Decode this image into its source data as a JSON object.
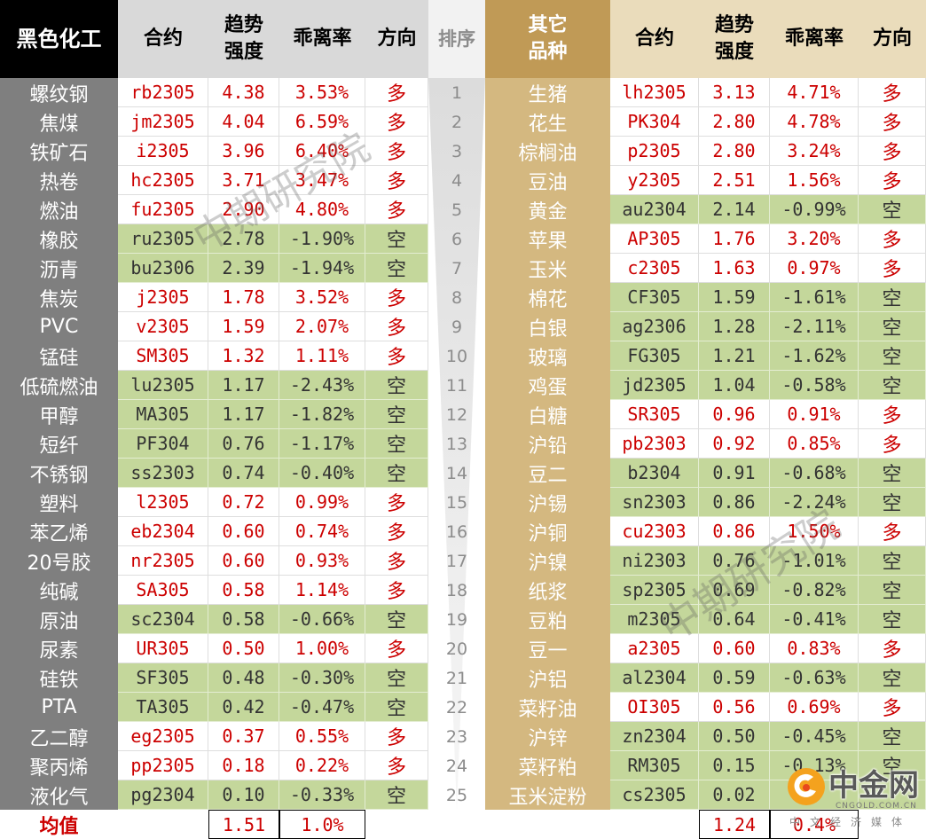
{
  "colors": {
    "black_header": "#000000",
    "left_name_bg": "#7F7F7F",
    "left_header_bg": "#D9D9D9",
    "rank_header_bg": "#F2F2F2",
    "gold_header": "#C09A56",
    "right_name_bg": "#D4B880",
    "right_header_bg": "#EADCBB",
    "short_bg": "#C4D79B",
    "long_text": "#CC0000",
    "short_text": "#333333",
    "rank_text": "#8C8C8C",
    "logo_orange": "#F4A21E"
  },
  "left": {
    "title": "黑色化工",
    "headers": {
      "contract": "合约",
      "strength_line1": "趋势",
      "strength_line2": "强度",
      "deviation": "乖离率",
      "direction": "方向"
    },
    "rows": [
      {
        "name": "螺纹钢",
        "contract": "rb2305",
        "strength": "4.38",
        "deviation": "3.53%",
        "direction": "多"
      },
      {
        "name": "焦煤",
        "contract": "jm2305",
        "strength": "4.04",
        "deviation": "6.59%",
        "direction": "多"
      },
      {
        "name": "铁矿石",
        "contract": "i2305",
        "strength": "3.96",
        "deviation": "6.40%",
        "direction": "多"
      },
      {
        "name": "热卷",
        "contract": "hc2305",
        "strength": "3.71",
        "deviation": "3.47%",
        "direction": "多"
      },
      {
        "name": "燃油",
        "contract": "fu2305",
        "strength": "2.90",
        "deviation": "4.80%",
        "direction": "多"
      },
      {
        "name": "橡胶",
        "contract": "ru2305",
        "strength": "2.78",
        "deviation": "-1.90%",
        "direction": "空"
      },
      {
        "name": "沥青",
        "contract": "bu2306",
        "strength": "2.39",
        "deviation": "-1.94%",
        "direction": "空"
      },
      {
        "name": "焦炭",
        "contract": "j2305",
        "strength": "1.78",
        "deviation": "3.52%",
        "direction": "多"
      },
      {
        "name": "PVC",
        "contract": "v2305",
        "strength": "1.59",
        "deviation": "2.07%",
        "direction": "多"
      },
      {
        "name": "锰硅",
        "contract": "SM305",
        "strength": "1.32",
        "deviation": "1.11%",
        "direction": "多"
      },
      {
        "name": "低硫燃油",
        "contract": "lu2305",
        "strength": "1.17",
        "deviation": "-2.43%",
        "direction": "空"
      },
      {
        "name": "甲醇",
        "contract": "MA305",
        "strength": "1.17",
        "deviation": "-1.82%",
        "direction": "空"
      },
      {
        "name": "短纤",
        "contract": "PF304",
        "strength": "0.76",
        "deviation": "-1.17%",
        "direction": "空"
      },
      {
        "name": "不锈钢",
        "contract": "ss2303",
        "strength": "0.74",
        "deviation": "-0.40%",
        "direction": "空"
      },
      {
        "name": "塑料",
        "contract": "l2305",
        "strength": "0.72",
        "deviation": "0.99%",
        "direction": "多"
      },
      {
        "name": "苯乙烯",
        "contract": "eb2304",
        "strength": "0.60",
        "deviation": "0.74%",
        "direction": "多"
      },
      {
        "name": "20号胶",
        "contract": "nr2305",
        "strength": "0.60",
        "deviation": "0.93%",
        "direction": "多"
      },
      {
        "name": "纯碱",
        "contract": "SA305",
        "strength": "0.58",
        "deviation": "1.14%",
        "direction": "多"
      },
      {
        "name": "原油",
        "contract": "sc2304",
        "strength": "0.58",
        "deviation": "-0.66%",
        "direction": "空"
      },
      {
        "name": "尿素",
        "contract": "UR305",
        "strength": "0.50",
        "deviation": "1.00%",
        "direction": "多"
      },
      {
        "name": "硅铁",
        "contract": "SF305",
        "strength": "0.48",
        "deviation": "-0.30%",
        "direction": "空"
      },
      {
        "name": "PTA",
        "contract": "TA305",
        "strength": "0.42",
        "deviation": "-0.47%",
        "direction": "空"
      },
      {
        "name": "乙二醇",
        "contract": "eg2305",
        "strength": "0.37",
        "deviation": "0.55%",
        "direction": "多"
      },
      {
        "name": "聚丙烯",
        "contract": "pp2305",
        "strength": "0.18",
        "deviation": "0.22%",
        "direction": "多"
      },
      {
        "name": "液化气",
        "contract": "pg2304",
        "strength": "0.10",
        "deviation": "-0.33%",
        "direction": "空"
      }
    ],
    "mean": {
      "label": "均值",
      "strength": "1.51",
      "deviation": "1.0%"
    }
  },
  "rank": {
    "header": "排序",
    "values": [
      "1",
      "2",
      "3",
      "4",
      "5",
      "6",
      "7",
      "8",
      "9",
      "10",
      "11",
      "12",
      "13",
      "14",
      "15",
      "16",
      "17",
      "18",
      "19",
      "20",
      "21",
      "22",
      "23",
      "24",
      "25"
    ]
  },
  "right": {
    "title_line1": "其它",
    "title_line2": "品种",
    "headers": {
      "contract": "合约",
      "strength_line1": "趋势",
      "strength_line2": "强度",
      "deviation": "乖离率",
      "direction": "方向"
    },
    "rows": [
      {
        "name": "生猪",
        "contract": "lh2305",
        "strength": "3.13",
        "deviation": "4.71%",
        "direction": "多"
      },
      {
        "name": "花生",
        "contract": "PK304",
        "strength": "2.80",
        "deviation": "4.78%",
        "direction": "多"
      },
      {
        "name": "棕榈油",
        "contract": "p2305",
        "strength": "2.80",
        "deviation": "3.24%",
        "direction": "多"
      },
      {
        "name": "豆油",
        "contract": "y2305",
        "strength": "2.51",
        "deviation": "1.56%",
        "direction": "多"
      },
      {
        "name": "黄金",
        "contract": "au2304",
        "strength": "2.14",
        "deviation": "-0.99%",
        "direction": "空"
      },
      {
        "name": "苹果",
        "contract": "AP305",
        "strength": "1.76",
        "deviation": "3.20%",
        "direction": "多"
      },
      {
        "name": "玉米",
        "contract": "c2305",
        "strength": "1.63",
        "deviation": "0.97%",
        "direction": "多"
      },
      {
        "name": "棉花",
        "contract": "CF305",
        "strength": "1.59",
        "deviation": "-1.61%",
        "direction": "空"
      },
      {
        "name": "白银",
        "contract": "ag2306",
        "strength": "1.28",
        "deviation": "-2.11%",
        "direction": "空"
      },
      {
        "name": "玻璃",
        "contract": "FG305",
        "strength": "1.21",
        "deviation": "-1.62%",
        "direction": "空"
      },
      {
        "name": "鸡蛋",
        "contract": "jd2305",
        "strength": "1.04",
        "deviation": "-0.58%",
        "direction": "空"
      },
      {
        "name": "白糖",
        "contract": "SR305",
        "strength": "0.96",
        "deviation": "0.91%",
        "direction": "多"
      },
      {
        "name": "沪铅",
        "contract": "pb2303",
        "strength": "0.92",
        "deviation": "0.85%",
        "direction": "多"
      },
      {
        "name": "豆二",
        "contract": "b2304",
        "strength": "0.91",
        "deviation": "-0.68%",
        "direction": "空"
      },
      {
        "name": "沪锡",
        "contract": "sn2303",
        "strength": "0.86",
        "deviation": "-2.24%",
        "direction": "空"
      },
      {
        "name": "沪铜",
        "contract": "cu2303",
        "strength": "0.86",
        "deviation": "1.50%",
        "direction": "多"
      },
      {
        "name": "沪镍",
        "contract": "ni2303",
        "strength": "0.76",
        "deviation": "-1.01%",
        "direction": "空"
      },
      {
        "name": "纸浆",
        "contract": "sp2305",
        "strength": "0.69",
        "deviation": "-0.82%",
        "direction": "空"
      },
      {
        "name": "豆粕",
        "contract": "m2305",
        "strength": "0.64",
        "deviation": "-0.41%",
        "direction": "空"
      },
      {
        "name": "豆一",
        "contract": "a2305",
        "strength": "0.60",
        "deviation": "0.83%",
        "direction": "多"
      },
      {
        "name": "沪铝",
        "contract": "al2304",
        "strength": "0.59",
        "deviation": "-0.63%",
        "direction": "空"
      },
      {
        "name": "菜籽油",
        "contract": "OI305",
        "strength": "0.56",
        "deviation": "0.69%",
        "direction": "多"
      },
      {
        "name": "沪锌",
        "contract": "zn2304",
        "strength": "0.50",
        "deviation": "-0.45%",
        "direction": "空"
      },
      {
        "name": "菜籽粕",
        "contract": "RM305",
        "strength": "0.15",
        "deviation": "-0.13%",
        "direction": "空"
      },
      {
        "name": "玉米淀粉",
        "contract": "cs2305",
        "strength": "0.02"
      }
    ],
    "mean": {
      "strength": "1.24",
      "deviation": "0.4%"
    }
  },
  "watermarks": [
    "中期研究院",
    "中期研究院"
  ],
  "logo": {
    "name": "中金网",
    "domain": "CNGOLD.COM.CN",
    "tagline": "中文经济媒体"
  }
}
